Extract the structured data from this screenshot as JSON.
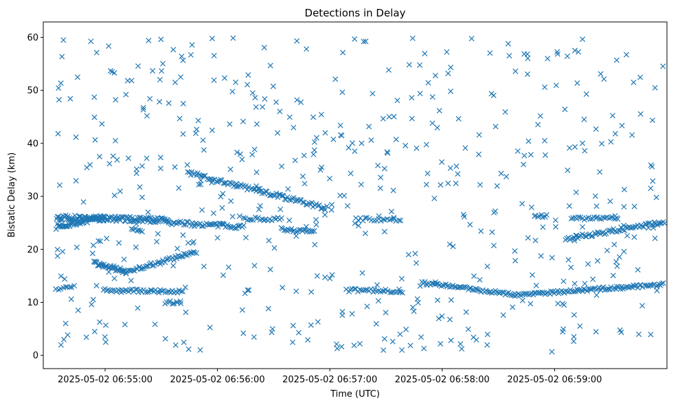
{
  "chart_data": {
    "type": "scatter",
    "title": "Detections in Delay",
    "xlabel": "Time (UTC)",
    "ylabel": "Bistatic Delay (km)",
    "x_axis_kind": "time",
    "x_start": "2025-05-02 06:54:34",
    "xlim_seconds": [
      -7,
      326
    ],
    "ylim": [
      -2.5,
      62.9
    ],
    "x_ticks": [
      {
        "label": "2025-05-02 06:55:00",
        "t": 26
      },
      {
        "label": "2025-05-02 06:56:00",
        "t": 86
      },
      {
        "label": "2025-05-02 06:57:00",
        "t": 146
      },
      {
        "label": "2025-05-02 06:58:00",
        "t": 206
      },
      {
        "label": "2025-05-02 06:59:00",
        "t": 266
      }
    ],
    "y_ticks": [
      0,
      10,
      20,
      30,
      40,
      50,
      60
    ],
    "marker": "x",
    "color": "#1f77b4",
    "grid": false,
    "legend": "none",
    "tracks": [
      {
        "t_start": 0,
        "t_end": 25,
        "y_start": 24.3,
        "y_end": 26.0,
        "step": 0.5,
        "jitter": 0.5
      },
      {
        "t_start": 0,
        "t_end": 60,
        "y_start": 26.0,
        "y_end": 25.5,
        "step": 0.5,
        "jitter": 0.5
      },
      {
        "t_start": 60,
        "t_end": 100,
        "y_start": 25.0,
        "y_end": 24.3,
        "step": 0.8,
        "jitter": 0.4
      },
      {
        "t_start": 100,
        "t_end": 120,
        "y_start": 25.8,
        "y_end": 25.7,
        "step": 1.0,
        "jitter": 0.3
      },
      {
        "t_start": 120,
        "t_end": 138,
        "y_start": 23.8,
        "y_end": 23.3,
        "step": 0.8,
        "jitter": 0.3
      },
      {
        "t_start": 70,
        "t_end": 145,
        "y_start": 34.5,
        "y_end": 27.7,
        "step": 0.8,
        "jitter": 0.4
      },
      {
        "t_start": 20,
        "t_end": 37,
        "y_start": 17.5,
        "y_end": 15.8,
        "step": 0.5,
        "jitter": 0.4
      },
      {
        "t_start": 37,
        "t_end": 75,
        "y_start": 15.8,
        "y_end": 19.5,
        "step": 0.8,
        "jitter": 0.4
      },
      {
        "t_start": 25,
        "t_end": 68,
        "y_start": 12.3,
        "y_end": 12.0,
        "step": 0.9,
        "jitter": 0.3
      },
      {
        "t_start": 155,
        "t_end": 185,
        "y_start": 12.3,
        "y_end": 12.1,
        "step": 1.0,
        "jitter": 0.3
      },
      {
        "t_start": 195,
        "t_end": 245,
        "y_start": 13.7,
        "y_end": 11.5,
        "step": 0.8,
        "jitter": 0.3
      },
      {
        "t_start": 245,
        "t_end": 325,
        "y_start": 11.4,
        "y_end": 13.4,
        "step": 0.8,
        "jitter": 0.3
      },
      {
        "t_start": 272,
        "t_end": 325,
        "y_start": 22.0,
        "y_end": 25.2,
        "step": 0.8,
        "jitter": 0.4
      },
      {
        "t_start": 275,
        "t_end": 300,
        "y_start": 25.8,
        "y_end": 25.9,
        "step": 1.0,
        "jitter": 0.3
      },
      {
        "t_start": 255,
        "t_end": 262,
        "y_start": 26.3,
        "y_end": 26.3,
        "step": 1.0,
        "jitter": 0.3
      },
      {
        "t_start": 160,
        "t_end": 185,
        "y_start": 25.7,
        "y_end": 25.6,
        "step": 1.2,
        "jitter": 0.3
      },
      {
        "t_start": 58,
        "t_end": 66,
        "y_start": 10.0,
        "y_end": 10.0,
        "step": 1.0,
        "jitter": 0.3
      },
      {
        "t_start": 40,
        "t_end": 46,
        "y_start": 24.0,
        "y_end": 23.5,
        "step": 1.0,
        "jitter": 0.3
      },
      {
        "t_start": 0,
        "t_end": 10,
        "y_start": 12.6,
        "y_end": 13.0,
        "step": 1.2,
        "jitter": 0.3
      }
    ],
    "noise": {
      "count": 520,
      "t_range": [
        0,
        325
      ],
      "y_range": [
        0.5,
        60
      ],
      "seed": 7
    }
  }
}
